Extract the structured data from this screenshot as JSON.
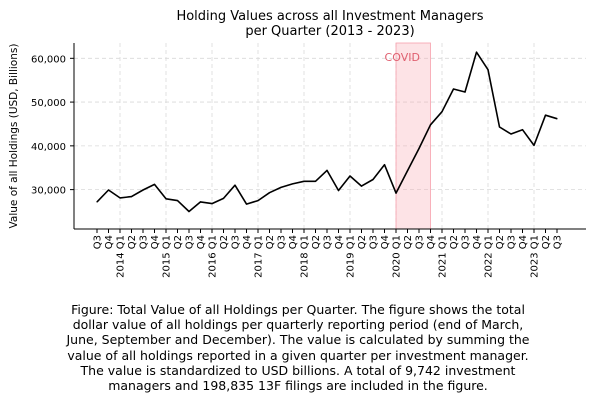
{
  "chart_data": {
    "type": "line",
    "title": "Holding Values across all Investment Managers\nper Quarter (2013 - 2023)",
    "ylabel": "Value of all Holdings (USD, Billions)",
    "xlabel": "",
    "ylim": [
      21000,
      63500
    ],
    "yticks": [
      30000,
      40000,
      50000,
      60000
    ],
    "ytick_labels": [
      "30,000",
      "40,000",
      "50,000",
      "60,000"
    ],
    "grid": true,
    "categories": [
      "Q3",
      "Q4",
      "2014 Q1",
      "Q2",
      "Q3",
      "Q4",
      "2015 Q1",
      "Q2",
      "Q3",
      "Q4",
      "2016 Q1",
      "Q2",
      "Q3",
      "Q4",
      "2017 Q1",
      "Q2",
      "Q3",
      "Q4",
      "2018 Q1",
      "Q2",
      "Q3",
      "Q4",
      "2019 Q1",
      "Q2",
      "Q3",
      "Q4",
      "2020 Q1",
      "Q2",
      "Q3",
      "Q4",
      "2021 Q1",
      "Q2",
      "Q3",
      "Q4",
      "2022 Q1",
      "Q2",
      "Q3",
      "Q4",
      "2023 Q1",
      "Q2",
      "Q3"
    ],
    "series": [
      {
        "color": "#000000",
        "values": [
          27200,
          29900,
          28100,
          28400,
          29900,
          31200,
          27900,
          27500,
          25000,
          27200,
          26800,
          28000,
          31000,
          26700,
          27500,
          29300,
          30500,
          31300,
          31900,
          31900,
          34400,
          29800,
          33100,
          30800,
          32300,
          35700,
          29200,
          34300,
          39400,
          44800,
          47800,
          53000,
          52300,
          61400,
          57400,
          44300,
          42700,
          43700,
          40100,
          47000,
          46200
        ]
      }
    ],
    "annotations": [
      {
        "text": "COVID",
        "x_start": "2020 Q1",
        "x_end": "Q4",
        "color": "#f7a1ad"
      }
    ]
  },
  "caption": "Figure: Total Value of all Holdings per Quarter. The figure shows the total dollar value of all holdings per quarterly reporting period (end of March, June, September and December). The value is calculated by summing the value of all holdings reported in a given quarter per investment manager. The value is standardized to USD billions. A total of 9,742 investment managers and 198,835 13F filings are included in the figure."
}
